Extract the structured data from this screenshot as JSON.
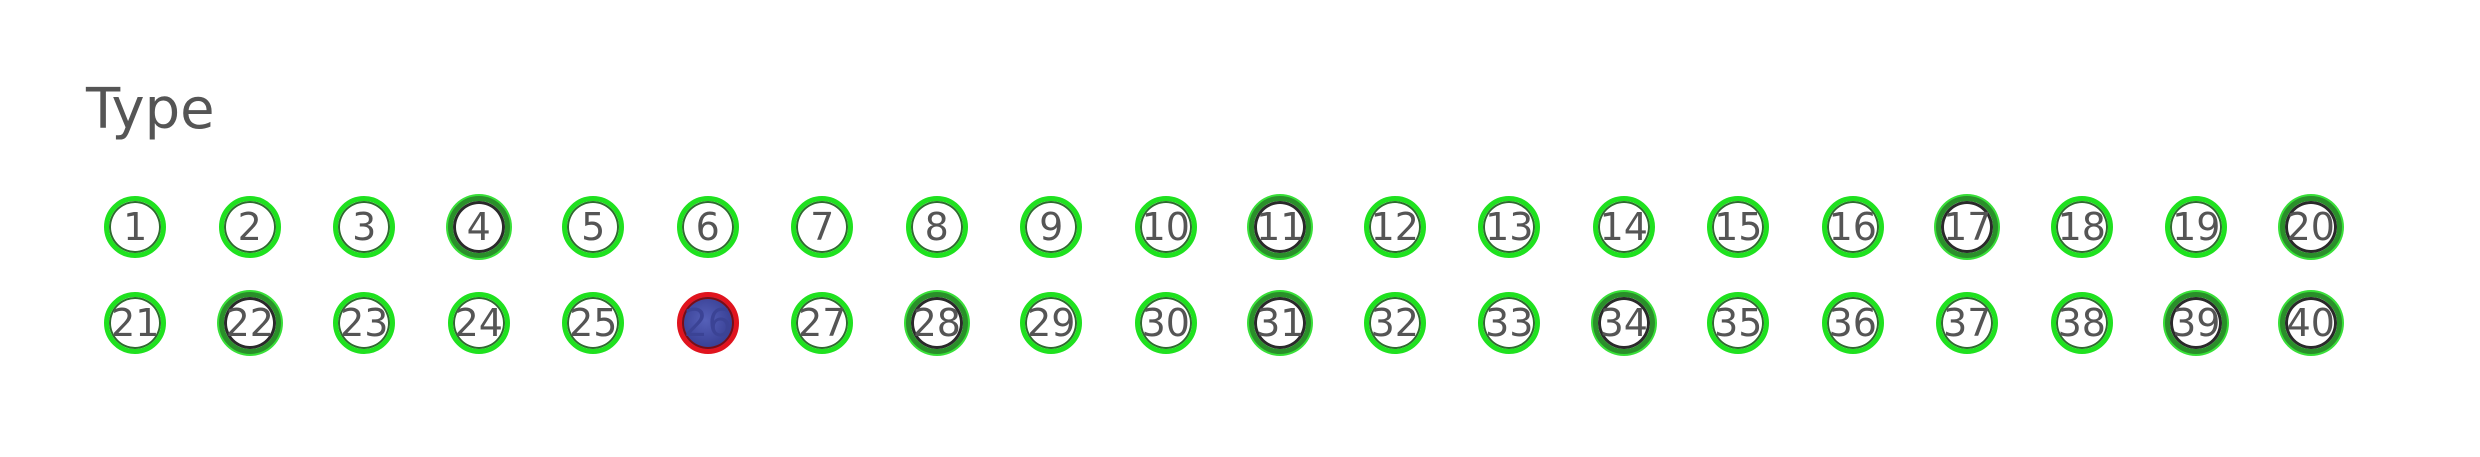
{
  "title": "Type",
  "numbers": [
    {
      "label": "1",
      "style": "normal"
    },
    {
      "label": "2",
      "style": "normal"
    },
    {
      "label": "3",
      "style": "normal"
    },
    {
      "label": "4",
      "style": "dark"
    },
    {
      "label": "5",
      "style": "normal"
    },
    {
      "label": "6",
      "style": "normal"
    },
    {
      "label": "7",
      "style": "normal"
    },
    {
      "label": "8",
      "style": "normal"
    },
    {
      "label": "9",
      "style": "normal"
    },
    {
      "label": "10",
      "style": "normal"
    },
    {
      "label": "11",
      "style": "dark"
    },
    {
      "label": "12",
      "style": "normal"
    },
    {
      "label": "13",
      "style": "normal"
    },
    {
      "label": "14",
      "style": "normal"
    },
    {
      "label": "15",
      "style": "normal"
    },
    {
      "label": "16",
      "style": "normal"
    },
    {
      "label": "17",
      "style": "dark"
    },
    {
      "label": "18",
      "style": "normal"
    },
    {
      "label": "19",
      "style": "normal"
    },
    {
      "label": "20",
      "style": "dark"
    },
    {
      "label": "21",
      "style": "normal"
    },
    {
      "label": "22",
      "style": "dark"
    },
    {
      "label": "23",
      "style": "normal"
    },
    {
      "label": "24",
      "style": "normal"
    },
    {
      "label": "25",
      "style": "normal"
    },
    {
      "label": "26",
      "style": "selected"
    },
    {
      "label": "27",
      "style": "normal"
    },
    {
      "label": "28",
      "style": "dark"
    },
    {
      "label": "29",
      "style": "normal"
    },
    {
      "label": "30",
      "style": "normal"
    },
    {
      "label": "31",
      "style": "dark"
    },
    {
      "label": "32",
      "style": "normal"
    },
    {
      "label": "33",
      "style": "normal"
    },
    {
      "label": "34",
      "style": "dark"
    },
    {
      "label": "35",
      "style": "normal"
    },
    {
      "label": "36",
      "style": "normal"
    },
    {
      "label": "37",
      "style": "normal"
    },
    {
      "label": "38",
      "style": "normal"
    },
    {
      "label": "39",
      "style": "dark"
    },
    {
      "label": "40",
      "style": "dark"
    }
  ],
  "colors": {
    "ring": "#1fe11f",
    "selected_ring": "#e0141e",
    "selected_fill": "#3c4499",
    "text": "#555555"
  }
}
